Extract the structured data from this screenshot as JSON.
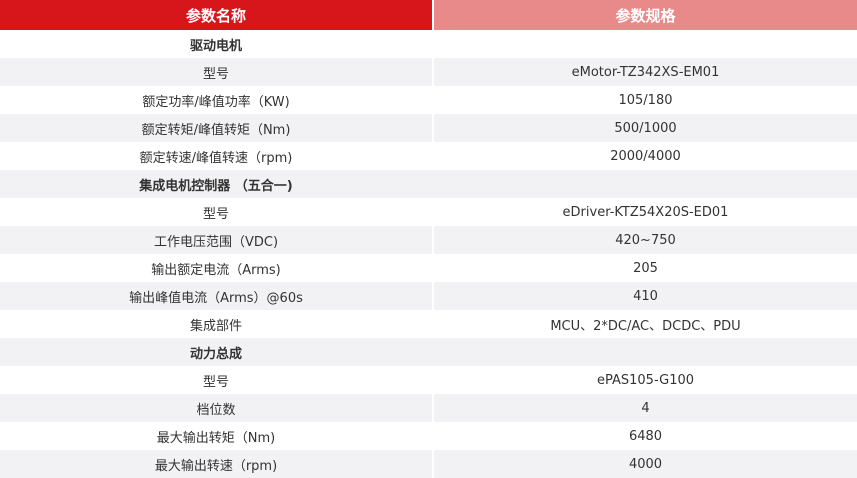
{
  "header": {
    "col1": "参数名称",
    "col2": "参数规格"
  },
  "rows": [
    {
      "type": "section",
      "name": "驱动电机"
    },
    {
      "name": "型号",
      "value": "eMotor-TZ342XS-EM01"
    },
    {
      "name": "额定功率/峰值功率（KW)",
      "value": "105/180"
    },
    {
      "name": "额定转矩/峰值转矩（Nm)",
      "value": "500/1000"
    },
    {
      "name": "额定转速/峰值转速（rpm)",
      "value": "2000/4000"
    },
    {
      "type": "section",
      "name": "集成电机控制器 （五合一)"
    },
    {
      "name": "型号",
      "value": "eDriver-KTZ54X20S-ED01"
    },
    {
      "name": "工作电压范围（VDC)",
      "value": "420~750"
    },
    {
      "name": "输出额定电流（Arms)",
      "value": "205"
    },
    {
      "name": "输出峰值电流（Arms）@60s",
      "value": "410"
    },
    {
      "name": "集成部件",
      "value": "MCU、2*DC/AC、DCDC、PDU"
    },
    {
      "type": "section",
      "name": "动力总成"
    },
    {
      "name": "型号",
      "value": "ePAS105-G100"
    },
    {
      "name": "档位数",
      "value": "4"
    },
    {
      "name": "最大输出转矩（Nm)",
      "value": "6480"
    },
    {
      "name": "最大输出转速（rpm)",
      "value": "4000"
    }
  ]
}
